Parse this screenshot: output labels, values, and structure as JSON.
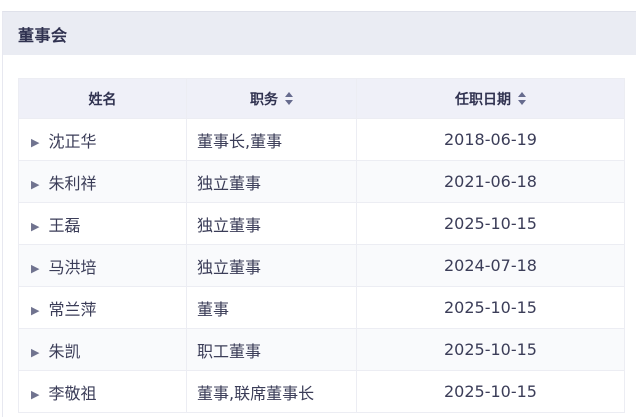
{
  "panel": {
    "title": "董事会"
  },
  "table": {
    "columns": [
      {
        "label": "姓名",
        "sortable": false
      },
      {
        "label": "职务",
        "sortable": true
      },
      {
        "label": "任职日期",
        "sortable": true
      }
    ],
    "rows": [
      {
        "name": "沈正华",
        "position": "董事长,董事",
        "date": "2018-06-19"
      },
      {
        "name": "朱利祥",
        "position": "独立董事",
        "date": "2021-06-18"
      },
      {
        "name": "王磊",
        "position": "独立董事",
        "date": "2025-10-15"
      },
      {
        "name": "马洪培",
        "position": "独立董事",
        "date": "2024-07-18"
      },
      {
        "name": "常兰萍",
        "position": "董事",
        "date": "2025-10-15"
      },
      {
        "name": "朱凯",
        "position": "职工董事",
        "date": "2025-10-15"
      },
      {
        "name": "李敬祖",
        "position": "董事,联席董事长",
        "date": "2025-10-15"
      }
    ],
    "expand_icon": "▶"
  },
  "colors": {
    "panel_header_bg": "#eaecf3",
    "table_header_bg": "#eff0f8",
    "row_alt_bg": "#f9fafc",
    "table_border": "#ecedf3",
    "title_text": "#303250",
    "body_text": "#3b3d58",
    "expand_icon_color": "#70738f",
    "sort_icon_color": "#666b8e"
  }
}
